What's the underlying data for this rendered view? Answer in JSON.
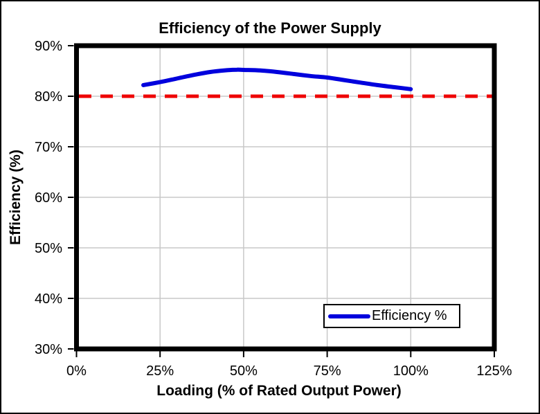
{
  "chart_data": {
    "type": "line",
    "title": "Efficiency of the Power Supply",
    "xlabel": "Loading (% of Rated Output Power)",
    "ylabel": "Efficiency (%)",
    "xlim": [
      0,
      125
    ],
    "ylim": [
      30,
      90
    ],
    "x_ticks": [
      0,
      25,
      50,
      75,
      100,
      125
    ],
    "x_tick_labels": [
      "0%",
      "25%",
      "50%",
      "75%",
      "100%",
      "125%"
    ],
    "y_ticks": [
      30,
      40,
      50,
      60,
      70,
      80,
      90
    ],
    "y_tick_labels": [
      "30%",
      "40%",
      "50%",
      "60%",
      "70%",
      "80%",
      "90%"
    ],
    "grid": true,
    "grid_color": "#c8c8c8",
    "axis_color": "#000000",
    "background_color": "#ffffff",
    "series": [
      {
        "name": "Efficiency %",
        "color": "#0000dd",
        "style": "solid",
        "points": [
          [
            20,
            82.2
          ],
          [
            25,
            82.8
          ],
          [
            30,
            83.5
          ],
          [
            35,
            84.2
          ],
          [
            40,
            84.8
          ],
          [
            45,
            85.15
          ],
          [
            48,
            85.25
          ],
          [
            50,
            85.2
          ],
          [
            55,
            85.1
          ],
          [
            60,
            84.8
          ],
          [
            65,
            84.4
          ],
          [
            70,
            84.0
          ],
          [
            75,
            83.7
          ],
          [
            80,
            83.2
          ],
          [
            85,
            82.7
          ],
          [
            90,
            82.2
          ],
          [
            95,
            81.8
          ],
          [
            100,
            81.4
          ]
        ]
      }
    ],
    "reference_line": {
      "value": 80,
      "color": "#ee0000",
      "style": "dashed"
    },
    "legend": {
      "position": "inside-bottom-right",
      "entries": [
        {
          "label": "Efficiency %",
          "color": "#0000dd"
        }
      ]
    }
  }
}
